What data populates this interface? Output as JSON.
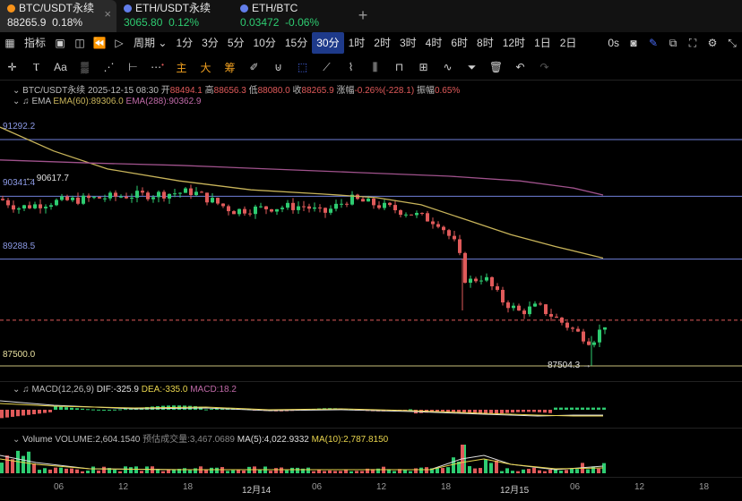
{
  "tabs": [
    {
      "name": "BTC/USDT永续",
      "price": "88265.9",
      "change": "0.18%",
      "dot_color": "#f7931a",
      "price_color": "#e8e8e8",
      "change_color": "#e8e8e8"
    },
    {
      "name": "ETH/USDT永续",
      "price": "3065.80",
      "change": "0.12%",
      "dot_color": "#627eea",
      "price_color": "#2ecc71",
      "change_color": "#2ecc71"
    },
    {
      "name": "ETH/BTC",
      "price": "0.03472",
      "change": "-0.06%",
      "dot_color": "#627eea",
      "price_color": "#2ecc71",
      "change_color": "#2ecc71"
    }
  ],
  "toolbar": {
    "indicators": "指标",
    "period": "周期",
    "intervals": [
      "1分",
      "3分",
      "5分",
      "10分",
      "15分",
      "30分",
      "1时",
      "2时",
      "3时",
      "4时",
      "6时",
      "8时",
      "12时",
      "1日",
      "2日"
    ],
    "active_interval": "30分",
    "countdown": "0s"
  },
  "draw_tools": [
    "主",
    "大",
    "筹"
  ],
  "info": {
    "symbol": "BTC/USDT永续",
    "datetime": "2025-12-15 08:30",
    "open_label": "开",
    "open": "88494.1",
    "high_label": "高",
    "high": "88656.3",
    "low_label": "低",
    "low": "88080.0",
    "close_label": "收",
    "close": "88265.9",
    "change_label": "涨幅",
    "change": "-0.26%(-228.1)",
    "amplitude_label": "振幅",
    "amplitude": "0.65%"
  },
  "ema": {
    "label": "EMA",
    "ema60": "EMA(60):89306.0",
    "ema288": "EMA(288):90362.9"
  },
  "levels": {
    "l1": "91292.2",
    "l2": "90341.4",
    "l3": "89288.5",
    "l4": "87500.0",
    "peak": "90617.7",
    "low_mark": "87504.3"
  },
  "macd": {
    "label": "MACD(12,26,9)",
    "dif": "DIF:-325.9",
    "dea": "DEA:-335.0",
    "macd": "MACD:18.2"
  },
  "volume": {
    "label": "Volume",
    "vol": "VOLUME:2,604.1540",
    "est": "预估成交量:3,467.0689",
    "ma5": "MA(5):4,022.9332",
    "ma10": "MA(10):2,787.8150"
  },
  "x_axis": [
    {
      "label": "06",
      "x": 68
    },
    {
      "label": "12",
      "x": 140
    },
    {
      "label": "18",
      "x": 212
    },
    {
      "label": "12月14",
      "x": 284
    },
    {
      "label": "06",
      "x": 356
    },
    {
      "label": "12",
      "x": 428
    },
    {
      "label": "18",
      "x": 500
    },
    {
      "label": "12月15",
      "x": 572
    },
    {
      "label": "06",
      "x": 644
    },
    {
      "label": "12",
      "x": 716
    },
    {
      "label": "18",
      "x": 788
    }
  ],
  "colors": {
    "up": "#2ecc71",
    "down": "#e05a5a",
    "ema60": "#c8b45a",
    "ema288": "#a0528c",
    "line_blue": "#6f7fd8",
    "accent_blue": "#4a6cf7"
  }
}
